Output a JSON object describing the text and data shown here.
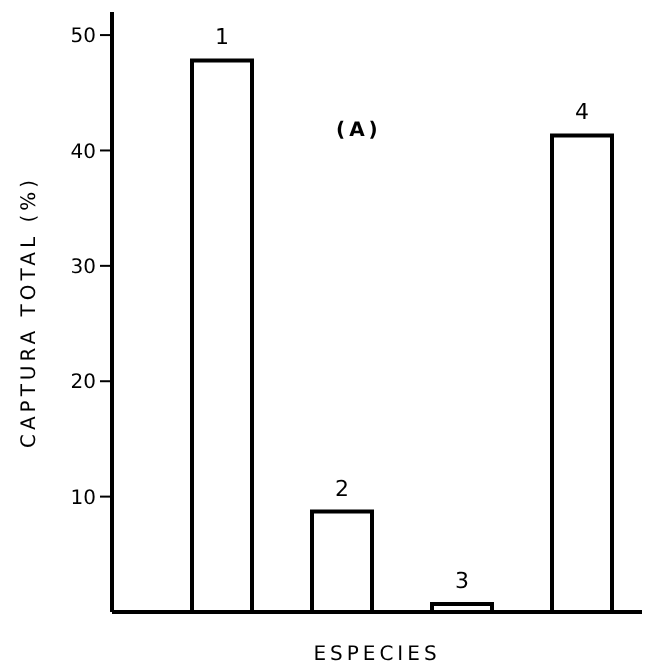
{
  "chart_data": {
    "type": "bar",
    "xlabel": "ESPECIES",
    "ylabel": "CAPTURA TOTAL (%)",
    "categories": [
      "1",
      "2",
      "3",
      "4"
    ],
    "values": [
      47.8,
      8.7,
      0.7,
      41.3
    ],
    "color": "#ffffff",
    "ylim": [
      0,
      52
    ],
    "yticks": [
      10,
      20,
      30,
      40,
      50
    ],
    "annotations": [
      "(A)"
    ],
    "grid": false
  }
}
